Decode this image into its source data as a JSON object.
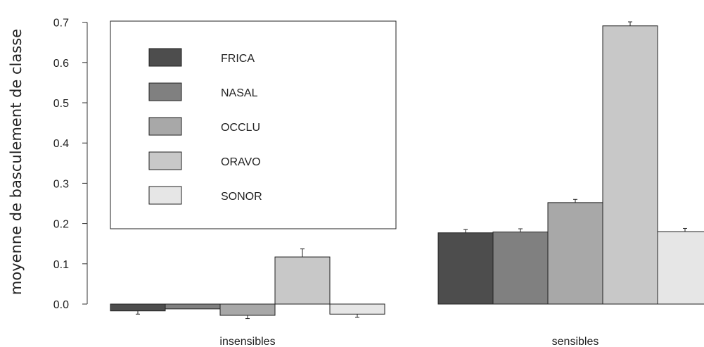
{
  "chart_data": {
    "type": "bar",
    "title": "",
    "xlabel": "",
    "ylabel": "moyenne de basculement de classe",
    "ylim": [
      -0.03,
      0.7
    ],
    "yticks": [
      "0.0",
      "0.1",
      "0.2",
      "0.3",
      "0.4",
      "0.5",
      "0.6",
      "0.7"
    ],
    "yticks_values": [
      0.0,
      0.1,
      0.2,
      0.3,
      0.4,
      0.5,
      0.6,
      0.7
    ],
    "categories": [
      "insensibles",
      "sensibles"
    ],
    "series": [
      {
        "name": "FRICA",
        "color": "#4d4d4d",
        "values": [
          -0.017,
          0.177
        ],
        "errors": [
          0.008,
          0.008
        ]
      },
      {
        "name": "NASAL",
        "color": "#808080",
        "values": [
          -0.012,
          0.179
        ],
        "errors": [
          0.0,
          0.008
        ]
      },
      {
        "name": "OCCLU",
        "color": "#a8a8a8",
        "values": [
          -0.028,
          0.252
        ],
        "errors": [
          0.008,
          0.008
        ]
      },
      {
        "name": "ORAVO",
        "color": "#c8c8c8",
        "values": [
          0.117,
          0.691
        ],
        "errors": [
          0.02,
          0.01
        ]
      },
      {
        "name": "SONOR",
        "color": "#e6e6e6",
        "values": [
          -0.025,
          0.18
        ],
        "errors": [
          0.008,
          0.008
        ]
      }
    ],
    "legend": "top-left",
    "grid": false
  }
}
